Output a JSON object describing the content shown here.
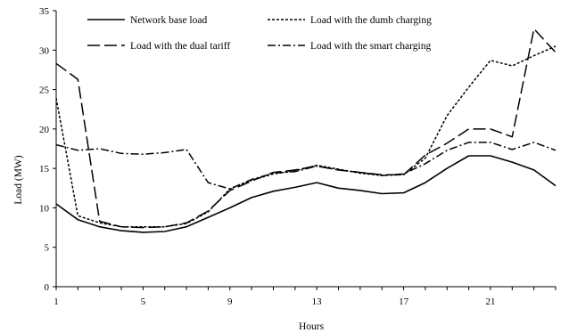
{
  "chart_data": {
    "type": "line",
    "xlabel": "Hours",
    "ylabel": "Load (MW)",
    "x": [
      1,
      2,
      3,
      4,
      5,
      6,
      7,
      8,
      9,
      10,
      11,
      12,
      13,
      14,
      15,
      16,
      17,
      18,
      19,
      20,
      21,
      22,
      23,
      24
    ],
    "xticks": [
      1,
      5,
      9,
      13,
      17,
      21
    ],
    "xlim": [
      1,
      24
    ],
    "ylim": [
      0,
      35
    ],
    "yticks": [
      0,
      5,
      10,
      15,
      20,
      25,
      30,
      35
    ],
    "grid": false,
    "legend_position": "top",
    "series": [
      {
        "name": "Network base load",
        "dash": "solid",
        "values": [
          10.5,
          8.5,
          7.6,
          7.1,
          6.9,
          7.0,
          7.6,
          8.8,
          10.0,
          11.3,
          12.1,
          12.6,
          13.2,
          12.5,
          12.2,
          11.8,
          11.9,
          13.2,
          15.0,
          16.6,
          16.6,
          15.8,
          14.8,
          12.8
        ]
      },
      {
        "name": "Load with the dumb charging",
        "dash": "dotted",
        "values": [
          23.9,
          9.0,
          8.1,
          7.6,
          7.6,
          7.6,
          8.0,
          9.5,
          12.4,
          13.5,
          14.3,
          14.7,
          15.4,
          14.9,
          14.4,
          14.1,
          14.2,
          16.3,
          21.7,
          25.3,
          28.7,
          28.0,
          29.3,
          30.5
        ]
      },
      {
        "name": "Load with the dual tariff",
        "dash": "longdash",
        "values": [
          28.3,
          26.3,
          8.3,
          7.6,
          7.5,
          7.6,
          8.1,
          9.6,
          12.2,
          13.4,
          14.5,
          14.8,
          15.3,
          14.8,
          14.5,
          14.2,
          14.2,
          16.7,
          18.2,
          20.0,
          20.0,
          19.0,
          32.7,
          29.7
        ]
      },
      {
        "name": "Load with the smart charging",
        "dash": "dashdot",
        "values": [
          18.0,
          17.3,
          17.5,
          16.9,
          16.8,
          17.0,
          17.4,
          13.2,
          12.4,
          13.6,
          14.4,
          14.6,
          15.3,
          14.8,
          14.5,
          14.1,
          14.3,
          15.6,
          17.3,
          18.3,
          18.3,
          17.4,
          18.3,
          17.3
        ]
      }
    ]
  }
}
